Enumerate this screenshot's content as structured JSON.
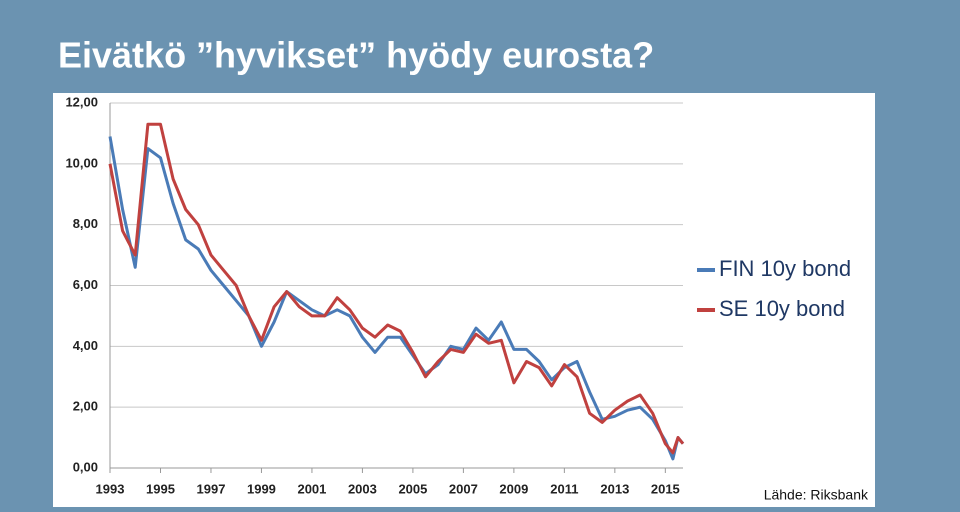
{
  "chart_data": {
    "type": "line",
    "title": "Eivätkö ”hyvikset” hyödy eurosta?",
    "source": "Lähde: Riksbank",
    "x": [
      1993.0,
      1993.5,
      1994.0,
      1994.5,
      1995.0,
      1995.5,
      1996.0,
      1996.5,
      1997.0,
      1997.5,
      1998.0,
      1998.5,
      1999.0,
      1999.5,
      2000.0,
      2000.5,
      2001.0,
      2001.5,
      2002.0,
      2002.5,
      2003.0,
      2003.5,
      2004.0,
      2004.5,
      2005.0,
      2005.5,
      2006.0,
      2006.5,
      2007.0,
      2007.5,
      2008.0,
      2008.5,
      2009.0,
      2009.5,
      2010.0,
      2010.5,
      2011.0,
      2011.5,
      2012.0,
      2012.5,
      2013.0,
      2013.5,
      2014.0,
      2014.5,
      2015.0,
      2015.3,
      2015.5,
      2015.7
    ],
    "series": [
      {
        "name": "FIN 10y bond",
        "color": "#4a7bb7",
        "values": [
          10.9,
          8.5,
          6.6,
          10.5,
          10.2,
          8.7,
          7.5,
          7.2,
          6.5,
          6.0,
          5.5,
          5.0,
          4.0,
          4.8,
          5.8,
          5.5,
          5.2,
          5.0,
          5.2,
          5.0,
          4.3,
          3.8,
          4.3,
          4.3,
          3.7,
          3.1,
          3.4,
          4.0,
          3.9,
          4.6,
          4.2,
          4.8,
          3.9,
          3.9,
          3.5,
          2.9,
          3.3,
          3.5,
          2.5,
          1.6,
          1.7,
          1.9,
          2.0,
          1.6,
          0.9,
          0.3,
          1.0,
          0.8
        ]
      },
      {
        "name": "SE 10y bond",
        "color": "#c0413f",
        "values": [
          10.0,
          7.8,
          7.0,
          11.3,
          11.3,
          9.5,
          8.5,
          8.0,
          7.0,
          6.5,
          6.0,
          5.0,
          4.2,
          5.3,
          5.8,
          5.3,
          5.0,
          5.0,
          5.6,
          5.2,
          4.6,
          4.3,
          4.7,
          4.5,
          3.8,
          3.0,
          3.5,
          3.9,
          3.8,
          4.4,
          4.1,
          4.2,
          2.8,
          3.5,
          3.3,
          2.7,
          3.4,
          3.0,
          1.8,
          1.5,
          1.9,
          2.2,
          2.4,
          1.8,
          0.8,
          0.5,
          1.0,
          0.8
        ]
      }
    ],
    "xlim": [
      1993,
      2015.7
    ],
    "xticks": [
      1993,
      1995,
      1997,
      1999,
      2001,
      2003,
      2005,
      2007,
      2009,
      2011,
      2013,
      2015
    ],
    "ylim": [
      0,
      12
    ],
    "yticks": [
      {
        "value": 0,
        "label": "0,00"
      },
      {
        "value": 2,
        "label": "2,00"
      },
      {
        "value": 4,
        "label": "4,00"
      },
      {
        "value": 6,
        "label": "6,00"
      },
      {
        "value": 8,
        "label": "8,00"
      },
      {
        "value": 10,
        "label": "10,00"
      },
      {
        "value": 12,
        "label": "12,00"
      }
    ],
    "grid": true
  }
}
